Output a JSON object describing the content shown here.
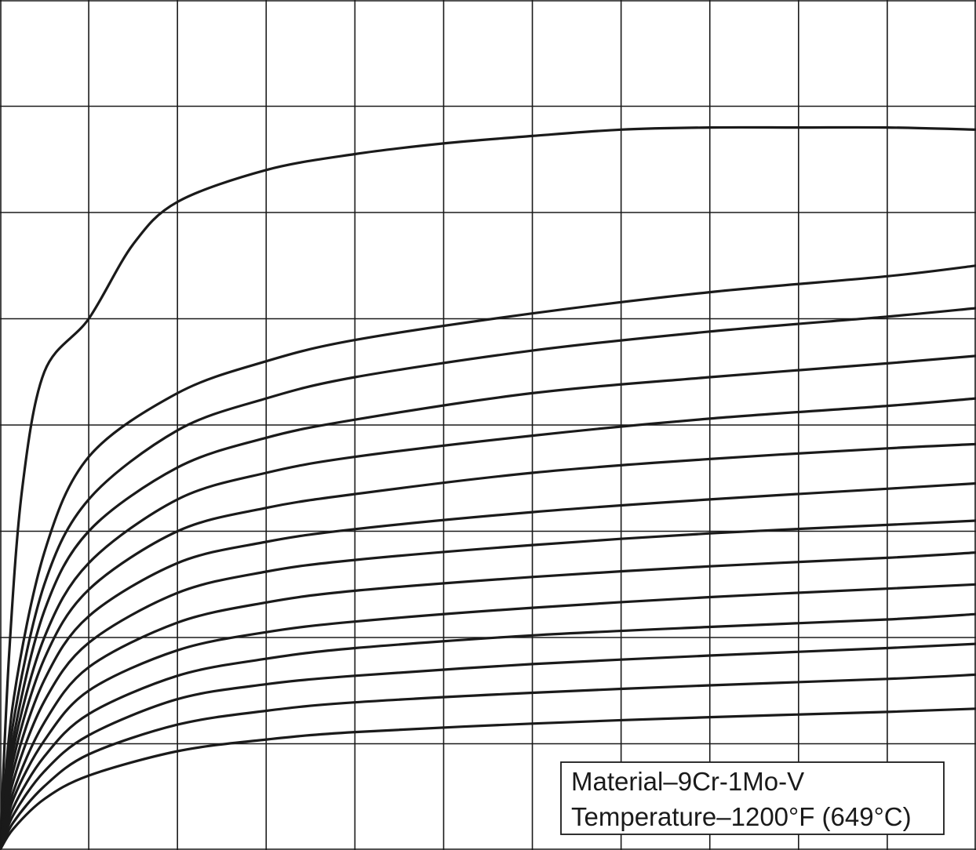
{
  "chart_data": {
    "type": "line",
    "title": "",
    "xlabel": "",
    "ylabel": "",
    "xlim": [
      0,
      11
    ],
    "ylim": [
      0,
      8
    ],
    "grid": true,
    "annotation": {
      "line1": "Material–9Cr-1Mo-V",
      "line2": "Temperature–1200°F (649°C)",
      "placement": "bottom-right"
    },
    "series": [
      {
        "x": [
          0,
          0.1,
          0.25,
          0.5,
          1,
          1.5,
          2,
          3,
          4,
          5,
          6,
          7,
          8,
          9,
          10,
          11
        ],
        "values": [
          0,
          1.8,
          3.4,
          4.5,
          5.0,
          5.7,
          6.1,
          6.4,
          6.55,
          6.65,
          6.72,
          6.78,
          6.8,
          6.8,
          6.8,
          6.78
        ]
      },
      {
        "x": [
          0,
          0.15,
          0.5,
          1,
          2,
          3,
          4,
          6,
          8,
          10,
          11
        ],
        "values": [
          0,
          1.4,
          2.8,
          3.7,
          4.3,
          4.6,
          4.8,
          5.05,
          5.25,
          5.4,
          5.5
        ]
      },
      {
        "x": [
          0,
          0.15,
          0.5,
          1,
          2,
          3,
          4,
          6,
          8,
          10,
          11
        ],
        "values": [
          0,
          1.2,
          2.5,
          3.3,
          3.95,
          4.25,
          4.45,
          4.7,
          4.88,
          5.02,
          5.1
        ]
      },
      {
        "x": [
          0,
          0.15,
          0.5,
          1,
          2,
          3,
          4,
          6,
          8,
          10,
          11
        ],
        "values": [
          0,
          1.05,
          2.25,
          3.0,
          3.6,
          3.88,
          4.05,
          4.3,
          4.45,
          4.58,
          4.65
        ]
      },
      {
        "x": [
          0,
          0.15,
          0.5,
          1,
          2,
          3,
          4,
          6,
          8,
          10,
          11
        ],
        "values": [
          0,
          0.95,
          2.0,
          2.7,
          3.3,
          3.55,
          3.7,
          3.9,
          4.06,
          4.18,
          4.25
        ]
      },
      {
        "x": [
          0,
          0.15,
          0.5,
          1,
          2,
          3,
          4,
          6,
          8,
          10,
          11
        ],
        "values": [
          0,
          0.85,
          1.8,
          2.45,
          3.0,
          3.22,
          3.35,
          3.55,
          3.68,
          3.78,
          3.82
        ]
      },
      {
        "x": [
          0,
          0.15,
          0.5,
          1,
          2,
          3,
          4,
          6,
          8,
          10,
          11
        ],
        "values": [
          0,
          0.75,
          1.6,
          2.2,
          2.7,
          2.9,
          3.02,
          3.18,
          3.3,
          3.4,
          3.45
        ]
      },
      {
        "x": [
          0,
          0.15,
          0.5,
          1,
          2,
          3,
          4,
          6,
          8,
          10,
          11
        ],
        "values": [
          0,
          0.65,
          1.4,
          1.95,
          2.42,
          2.62,
          2.73,
          2.87,
          2.98,
          3.06,
          3.1
        ]
      },
      {
        "x": [
          0,
          0.15,
          0.5,
          1,
          2,
          3,
          4,
          6,
          8,
          10,
          11
        ],
        "values": [
          0,
          0.55,
          1.2,
          1.72,
          2.14,
          2.33,
          2.44,
          2.57,
          2.67,
          2.75,
          2.8
        ]
      },
      {
        "x": [
          0,
          0.15,
          0.5,
          1,
          2,
          3,
          4,
          6,
          8,
          10,
          11
        ],
        "values": [
          0,
          0.48,
          1.03,
          1.5,
          1.88,
          2.05,
          2.15,
          2.28,
          2.38,
          2.46,
          2.5
        ]
      },
      {
        "x": [
          0,
          0.15,
          0.5,
          1,
          2,
          3,
          4,
          6,
          8,
          10,
          11
        ],
        "values": [
          0,
          0.4,
          0.88,
          1.28,
          1.64,
          1.8,
          1.9,
          2.02,
          2.1,
          2.17,
          2.22
        ]
      },
      {
        "x": [
          0,
          0.15,
          0.5,
          1,
          2,
          3,
          4,
          6,
          8,
          10,
          11
        ],
        "values": [
          0,
          0.33,
          0.74,
          1.08,
          1.42,
          1.56,
          1.64,
          1.75,
          1.83,
          1.9,
          1.94
        ]
      },
      {
        "x": [
          0,
          0.15,
          0.5,
          1,
          2,
          3,
          4,
          6,
          8,
          10,
          11
        ],
        "values": [
          0,
          0.26,
          0.6,
          0.9,
          1.18,
          1.31,
          1.39,
          1.48,
          1.55,
          1.61,
          1.65
        ]
      },
      {
        "x": [
          0,
          0.15,
          0.5,
          1,
          2,
          3,
          4,
          6,
          8,
          10,
          11
        ],
        "values": [
          0,
          0.2,
          0.48,
          0.7,
          0.93,
          1.04,
          1.11,
          1.19,
          1.25,
          1.3,
          1.33
        ]
      }
    ]
  }
}
